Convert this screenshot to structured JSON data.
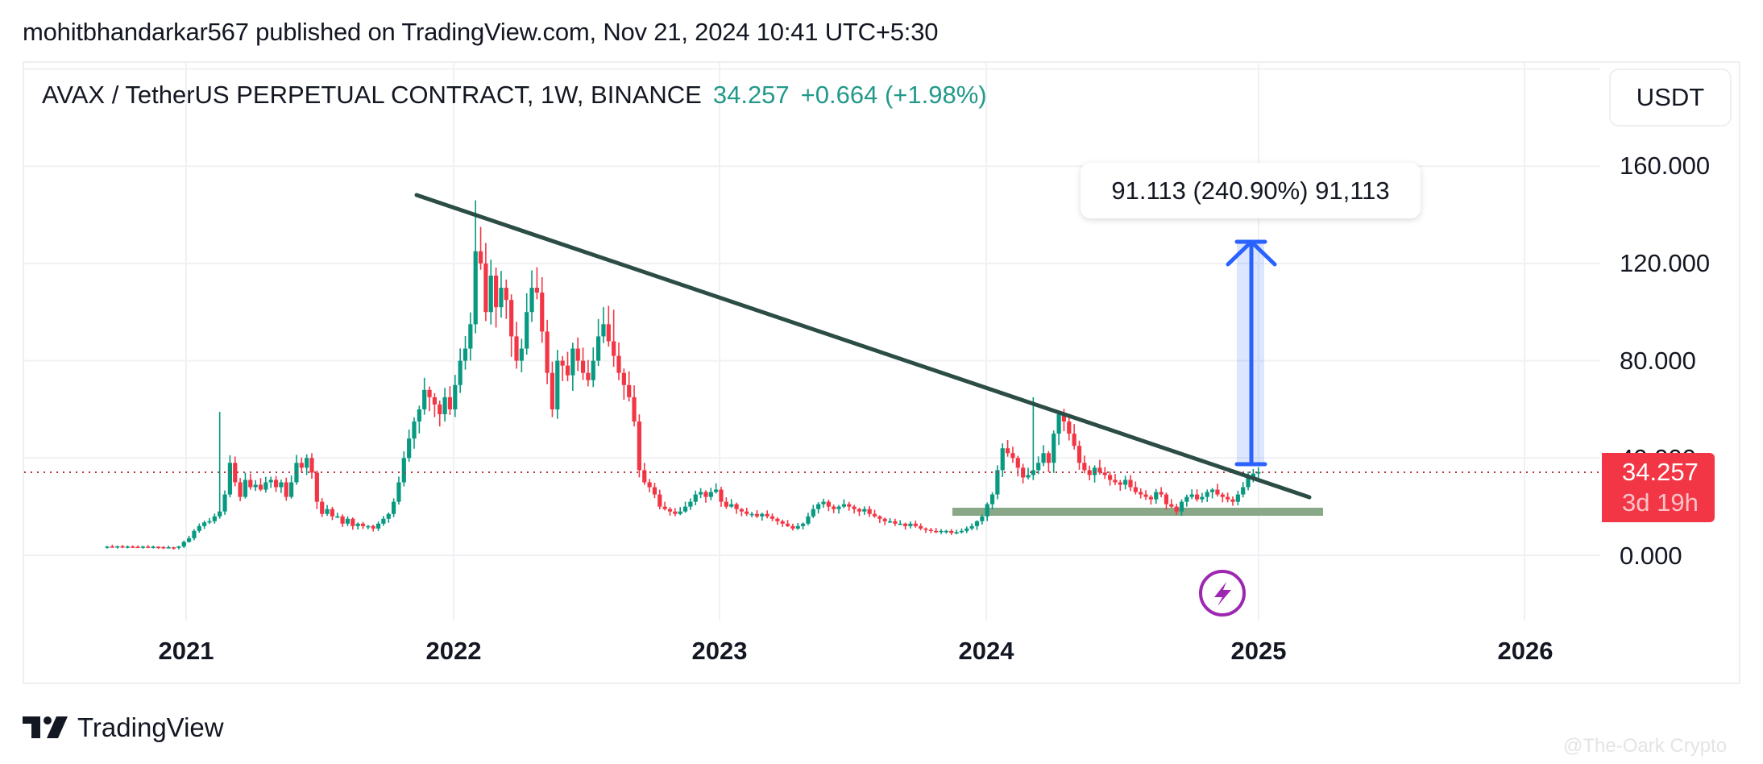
{
  "header": {
    "publish_line": "mohitbhandarkar567 published on TradingView.com, Nov 21, 2024 10:41 UTC+5:30"
  },
  "legend": {
    "symbol": "AVAX / TetherUS PERPETUAL CONTRACT, 1W, BINANCE",
    "price": "34.257",
    "change": "+0.664 (+1.98%)"
  },
  "currency_button": {
    "label": "USDT"
  },
  "price_axis": {
    "ticks": [
      "160.000",
      "120.000",
      "80.000",
      "40.000",
      "0.000"
    ]
  },
  "price_tag": {
    "price": "34.257",
    "countdown": "3d 19h"
  },
  "measure": {
    "label": "91.113 (240.90%) 91,113"
  },
  "time_axis": {
    "years": [
      "2021",
      "2022",
      "2023",
      "2024",
      "2025",
      "2026"
    ]
  },
  "footer": {
    "brand": "TradingView",
    "watermark": "@The-Oark Crypto"
  },
  "colors": {
    "up": "#089981",
    "down": "#f23645",
    "trendline": "#2b4d45",
    "support": "#88a888",
    "measure": "#2962ff",
    "alert_icon": "#9c27b0",
    "legend_green": "#22998a"
  },
  "chart_data": {
    "type": "candlestick",
    "title": "AVAX / TetherUS PERPETUAL CONTRACT, 1W, BINANCE",
    "xlabel": "",
    "ylabel": "USDT",
    "ylim": [
      -20,
      200
    ],
    "y_ticks": [
      0,
      40,
      80,
      120,
      160
    ],
    "x_ticks": [
      "2021",
      "2022",
      "2023",
      "2024",
      "2025",
      "2026"
    ],
    "interval": "1W",
    "start_week": "2020-09-21",
    "last_price": 34.257,
    "change": 0.664,
    "change_pct": 1.98,
    "weekly_closes": [
      3.6,
      3.5,
      3.7,
      3.4,
      3.6,
      3.5,
      3.4,
      3.6,
      3.3,
      3.5,
      3.4,
      3.2,
      3.3,
      3.1,
      3.6,
      5.5,
      7,
      10,
      12,
      13.5,
      14,
      16,
      18,
      25,
      38,
      30,
      24,
      31,
      28,
      29,
      27,
      30,
      31,
      28,
      30,
      24,
      30,
      38,
      36,
      40,
      34,
      22,
      17,
      19,
      16,
      16,
      13,
      15,
      12,
      13,
      12,
      12,
      11,
      13,
      15,
      17,
      22,
      30,
      40,
      48,
      55,
      60,
      68,
      65,
      62,
      58,
      65,
      60,
      70,
      80,
      85,
      95,
      125,
      120,
      100,
      115,
      102,
      110,
      105,
      90,
      80,
      85,
      100,
      110,
      108,
      92,
      75,
      60,
      80,
      78,
      74,
      85,
      80,
      75,
      72,
      80,
      90,
      95,
      88,
      82,
      75,
      70,
      65,
      55,
      35,
      30,
      28,
      25,
      20,
      19,
      18,
      17,
      18,
      20,
      22,
      25,
      26,
      24,
      26,
      27,
      22,
      20,
      21,
      19,
      18,
      17,
      17,
      16,
      17,
      16,
      15,
      14,
      13,
      12,
      11,
      12,
      13,
      16,
      19,
      21,
      22,
      20,
      19,
      20,
      21,
      20,
      19,
      18,
      19,
      17,
      16,
      15,
      14,
      14,
      13,
      13,
      12,
      13,
      12,
      11,
      10.5,
      10,
      9.5,
      10,
      10,
      9.2,
      9.5,
      10,
      11,
      12,
      14,
      16,
      21,
      25,
      35,
      44,
      42,
      40,
      36,
      32,
      33,
      35,
      38,
      42,
      38,
      50,
      58,
      55,
      50,
      45,
      38,
      35,
      33,
      36,
      34,
      33,
      31,
      30,
      29,
      31,
      28,
      26,
      25,
      24,
      23,
      26,
      25,
      21,
      20,
      18,
      22,
      24,
      25,
      23,
      24,
      26,
      27,
      25,
      24,
      23,
      22,
      25,
      28,
      32,
      33.6,
      34.257
    ],
    "annotations": [
      {
        "type": "trendline",
        "from": {
          "date": "2021-11-22",
          "price": 148
        },
        "to": {
          "date": "2025-03-31",
          "price": 23
        }
      },
      {
        "type": "support_zone",
        "price_low": 16.5,
        "price_high": 19.5,
        "from": "2023-11-20",
        "to": "2025-04-07"
      },
      {
        "type": "price_range_measure",
        "from_price": 37.8,
        "to_price": 128.9,
        "delta": 91.113,
        "delta_pct": 240.9,
        "label": "91.113 (240.90%) 91,113"
      },
      {
        "type": "alert_icon",
        "date": "2024-11-25"
      }
    ]
  }
}
